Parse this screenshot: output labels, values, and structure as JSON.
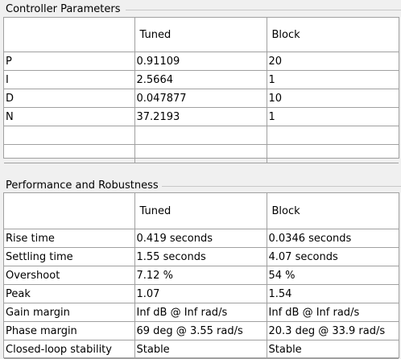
{
  "controller": {
    "title": "Controller Parameters",
    "columns": [
      "",
      "Tuned",
      "Block"
    ],
    "rows": [
      [
        "P",
        "0.91109",
        "20"
      ],
      [
        "I",
        "2.5664",
        "1"
      ],
      [
        "D",
        "0.047877",
        "10"
      ],
      [
        "N",
        "37.2193",
        "1"
      ],
      [
        "",
        "",
        ""
      ],
      [
        "",
        "",
        ""
      ]
    ]
  },
  "performance": {
    "title": "Performance and Robustness",
    "columns": [
      "",
      "Tuned",
      "Block"
    ],
    "rows": [
      [
        "Rise time",
        "0.419 seconds",
        "0.0346 seconds"
      ],
      [
        "Settling time",
        "1.55 seconds",
        "4.07 seconds"
      ],
      [
        "Overshoot",
        "7.12 %",
        "54 %"
      ],
      [
        "Peak",
        "1.07",
        "1.54"
      ],
      [
        "Gain margin",
        "Inf dB @ Inf rad/s",
        "Inf dB @ Inf rad/s"
      ],
      [
        "Phase margin",
        "69 deg @ 3.55 rad/s",
        "20.3 deg @ 33.9 rad/s"
      ],
      [
        "Closed-loop stability",
        "Stable",
        "Stable"
      ]
    ]
  }
}
